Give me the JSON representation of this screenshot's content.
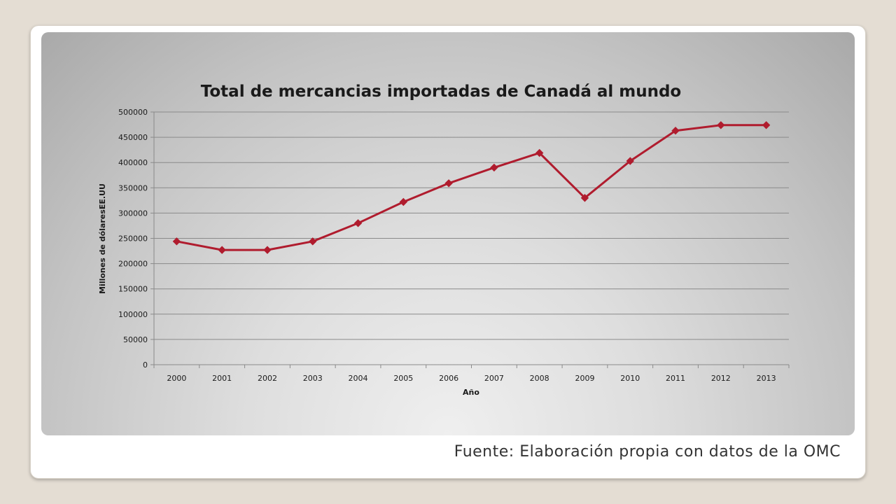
{
  "chart_data": {
    "type": "line",
    "title": "Total de mercancias importadas de Canadá al mundo",
    "xlabel": "Año",
    "ylabel": "Millones  de dólaresEE.UU",
    "categories": [
      "2000",
      "2001",
      "2002",
      "2003",
      "2004",
      "2005",
      "2006",
      "2007",
      "2008",
      "2009",
      "2010",
      "2011",
      "2012",
      "2013"
    ],
    "series": [
      {
        "values": [
          244000,
          227000,
          227000,
          244000,
          280000,
          322000,
          359000,
          390000,
          419000,
          330000,
          403000,
          463000,
          474000,
          474000
        ]
      }
    ],
    "ylim": [
      0,
      500000
    ],
    "yticks": [
      "0",
      "50000",
      "100000",
      "150000",
      "200000",
      "250000",
      "300000",
      "350000",
      "400000",
      "450000",
      "500000"
    ],
    "grid": true,
    "line_color": "#b01c2e",
    "marker": "diamond"
  },
  "footer": {
    "source": "Fuente: Elaboración propia con datos de la OMC"
  }
}
